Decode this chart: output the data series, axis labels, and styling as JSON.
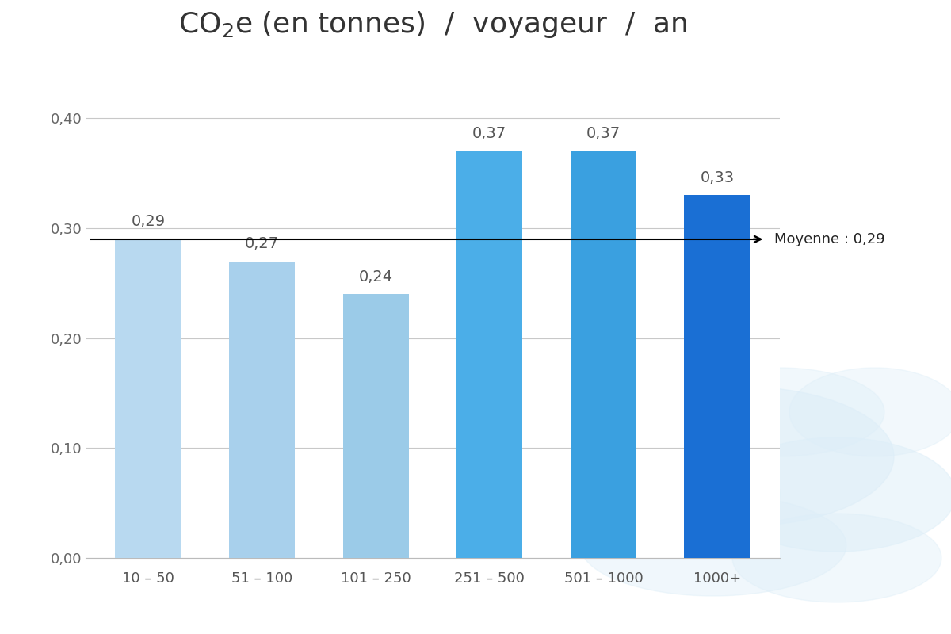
{
  "categories": [
    "10 – 50",
    "51 – 100",
    "101 – 250",
    "251 – 500",
    "501 – 1000",
    "1000+"
  ],
  "values": [
    0.29,
    0.27,
    0.24,
    0.37,
    0.37,
    0.33
  ],
  "bar_colors": [
    "#b8d9f0",
    "#a8d0ec",
    "#9bcbe8",
    "#4baee8",
    "#3aa0e0",
    "#1a6fd4"
  ],
  "value_labels": [
    "0,29",
    "0,27",
    "0,24",
    "0,37",
    "0,37",
    "0,33"
  ],
  "title_part1": "CO",
  "title_sub": "2",
  "title_part2": "e (en tonnes)  /  voyageur  /  an",
  "title_fontsize": 26,
  "ylim": [
    0,
    0.45
  ],
  "yticks": [
    0.0,
    0.1,
    0.2,
    0.3,
    0.4
  ],
  "ytick_labels": [
    "0,00",
    "0,10",
    "0,20",
    "0,30",
    "0,40"
  ],
  "mean_value": 0.29,
  "mean_label": "Moyenne : 0,29",
  "background_color": "#ffffff",
  "bar_label_fontsize": 14,
  "tick_fontsize": 13,
  "grid_color": "#c8c8c8",
  "watermark_color": "#ddeef8"
}
